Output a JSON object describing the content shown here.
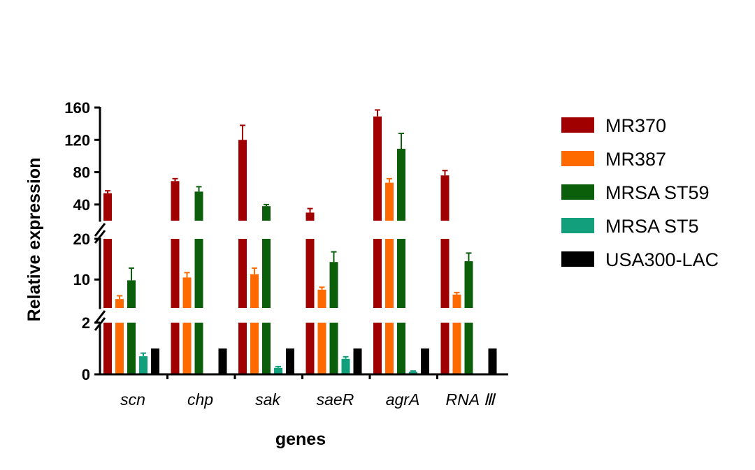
{
  "chart_data": {
    "type": "bar",
    "xlabel": "genes",
    "ylabel": "Relative expression",
    "categories": [
      "scn",
      "chp",
      "sak",
      "saeR",
      "agrA",
      "RNA Ⅲ"
    ],
    "y_axis_segments": [
      {
        "range": [
          0,
          2
        ],
        "ticks": [
          "0",
          "2"
        ]
      },
      {
        "range": [
          3,
          20
        ],
        "ticks": [
          "10",
          "20"
        ]
      },
      {
        "range": [
          20,
          160
        ],
        "ticks": [
          "40",
          "80",
          "120",
          "160"
        ]
      }
    ],
    "legend_position": "right",
    "series": [
      {
        "name": "MR370",
        "color": "#A00000",
        "values": [
          54,
          69,
          120,
          30,
          149,
          76
        ],
        "errors": [
          3,
          3,
          18,
          5,
          8,
          6
        ]
      },
      {
        "name": "MR387",
        "color": "#FF6A00",
        "values": [
          5.2,
          10.5,
          11.3,
          7.5,
          67,
          6.3
        ],
        "errors": [
          0.8,
          1.2,
          1.5,
          0.6,
          5,
          0.5
        ]
      },
      {
        "name": "MRSA ST59",
        "color": "#0B5F0B",
        "values": [
          9.8,
          56,
          38,
          14.3,
          109,
          14.5
        ],
        "errors": [
          3,
          6,
          2,
          2.5,
          19,
          2
        ]
      },
      {
        "name": "MRSA ST5",
        "color": "#12A07C",
        "values": [
          0.7,
          null,
          0.25,
          0.6,
          0.1,
          null
        ],
        "errors": [
          0.12,
          null,
          0.05,
          0.08,
          0.03,
          null
        ]
      },
      {
        "name": "USA300-LAC",
        "color": "#000000",
        "values": [
          1,
          1,
          1,
          1,
          1,
          1
        ],
        "errors": [
          0,
          0,
          0,
          0,
          0,
          0
        ]
      }
    ]
  }
}
